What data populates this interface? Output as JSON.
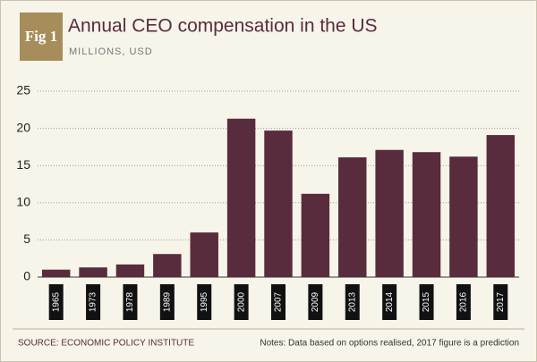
{
  "badge": "Fig 1",
  "chart_data": {
    "type": "bar",
    "title": "Annual CEO compensation in the US",
    "subtitle": "MILLIONS, USD",
    "categories": [
      "1965",
      "1973",
      "1978",
      "1989",
      "1995",
      "2000",
      "2007",
      "2009",
      "2013",
      "2014",
      "2015",
      "2016",
      "2017"
    ],
    "values": [
      1.0,
      1.3,
      1.7,
      3.1,
      6.0,
      21.3,
      19.7,
      11.2,
      16.1,
      17.1,
      16.8,
      16.2,
      19.1
    ],
    "color": "#582c3d",
    "ylim": [
      0,
      25
    ],
    "yticks": [
      0,
      5,
      10,
      15,
      20,
      25
    ],
    "grid": true
  },
  "footer": {
    "source": "SOURCE: ECONOMIC POLICY INSTITUTE",
    "notes": "Notes: Data based on options realised, 2017 figure is a prediction"
  }
}
